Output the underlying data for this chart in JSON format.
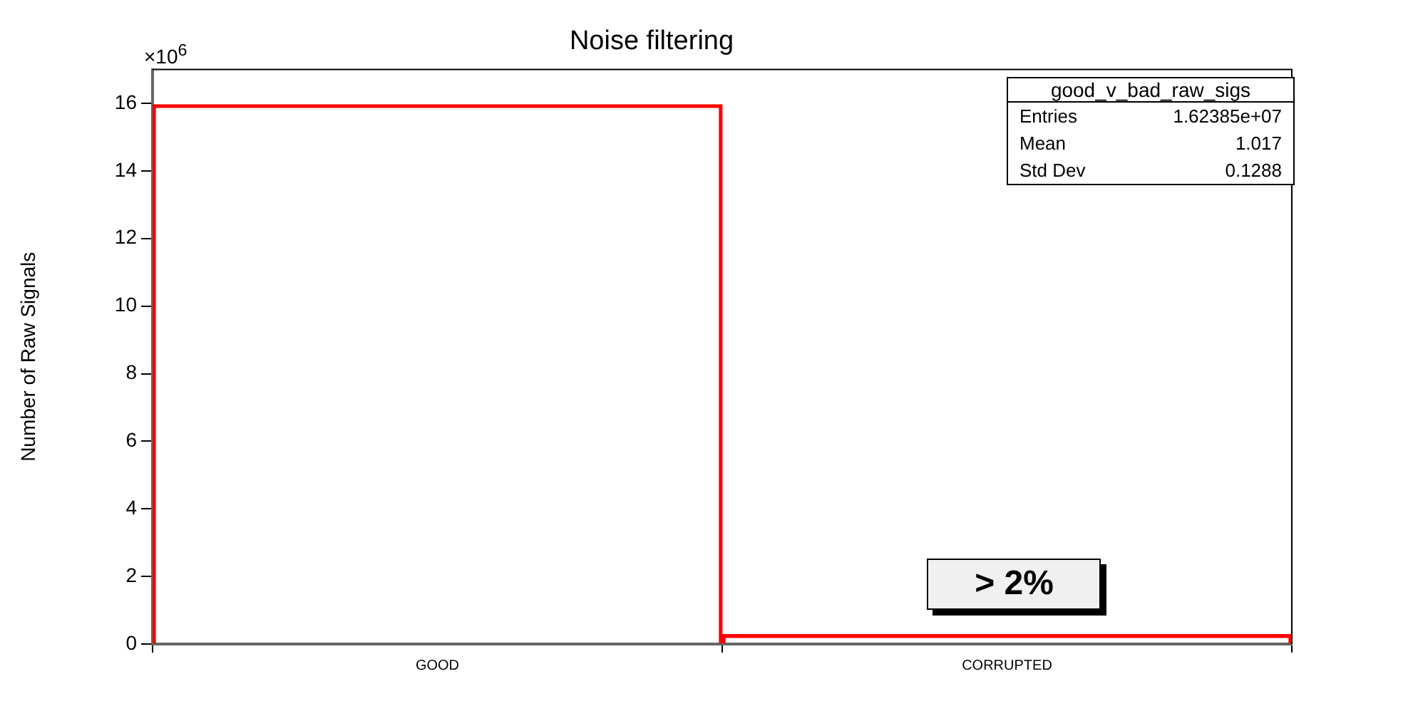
{
  "chart_data": {
    "type": "bar",
    "title": "Noise filtering",
    "ylabel": "Number of Raw Signals",
    "categories": [
      "GOOD",
      "CORRUPTED"
    ],
    "series": [
      {
        "color": "#ff0000",
        "values": [
          15.96,
          0.28
        ]
      }
    ],
    "ylim": [
      0,
      17
    ],
    "yticks": [
      0,
      2,
      4,
      6,
      8,
      10,
      12,
      14,
      16
    ],
    "grid": false,
    "annotations": [
      "×10$^{6}$",
      "good_v_bad_raw_sigs",
      "Entries",
      "1.62385e+07",
      "Mean",
      "1.017",
      "Std Dev",
      "0.1288",
      "> 2%"
    ]
  }
}
